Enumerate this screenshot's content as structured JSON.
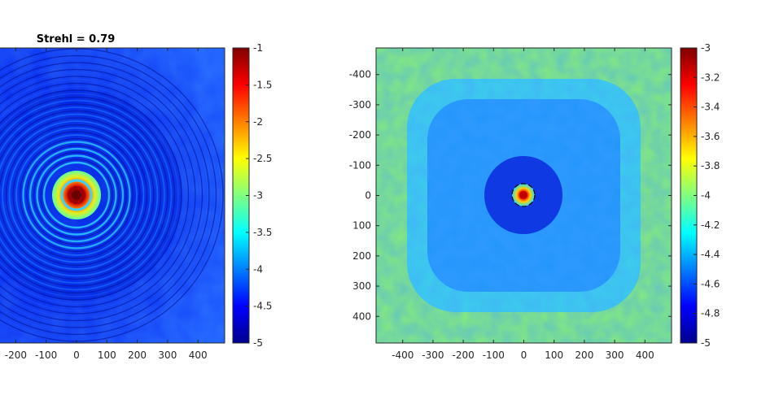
{
  "chart_data": [
    {
      "type": "heatmap",
      "title": "Strehl = 0.79",
      "xlabel": "",
      "ylabel": "",
      "x_ticks": [
        "-200",
        "-100",
        "0",
        "100",
        "200",
        "300",
        "400"
      ],
      "x_tick_values": [
        -200,
        -100,
        0,
        100,
        200,
        300,
        400
      ],
      "xlim": [
        -488,
        488
      ],
      "ylim": [
        -488,
        488
      ],
      "colormap": "jet",
      "colorbar": {
        "range": [
          -5,
          -1
        ],
        "ticks": [
          "-1",
          "-1.5",
          "-2",
          "-2.5",
          "-3",
          "-3.5",
          "-4",
          "-4.5",
          "-5"
        ],
        "tick_values": [
          -1,
          -1.5,
          -2,
          -2.5,
          -3,
          -3.5,
          -4,
          -4.5,
          -5
        ]
      },
      "description_pattern": "concentric-rings-psf"
    },
    {
      "type": "heatmap",
      "title": "",
      "xlabel": "",
      "ylabel": "",
      "x_ticks": [
        "-400",
        "-300",
        "-200",
        "-100",
        "0",
        "100",
        "200",
        "300",
        "400"
      ],
      "x_tick_values": [
        -400,
        -300,
        -200,
        -100,
        0,
        100,
        200,
        300,
        400
      ],
      "y_ticks": [
        "-400",
        "-300",
        "-200",
        "-100",
        "0",
        "100",
        "200",
        "300",
        "400"
      ],
      "y_tick_values": [
        -400,
        -300,
        -200,
        -100,
        0,
        100,
        200,
        300,
        400
      ],
      "xlim": [
        -488,
        488
      ],
      "ylim": [
        -488,
        488
      ],
      "colormap": "jet",
      "colorbar": {
        "range": [
          -5,
          -3
        ],
        "ticks": [
          "-3",
          "-3.2",
          "-3.4",
          "-3.6",
          "-3.8",
          "-4",
          "-4.2",
          "-4.4",
          "-4.6",
          "-4.8",
          "-5"
        ],
        "tick_values": [
          -3,
          -3.2,
          -3.4,
          -3.6,
          -3.8,
          -4,
          -4.2,
          -4.4,
          -4.6,
          -4.8,
          -5
        ]
      },
      "description_pattern": "dark-hole-square-halo"
    }
  ]
}
